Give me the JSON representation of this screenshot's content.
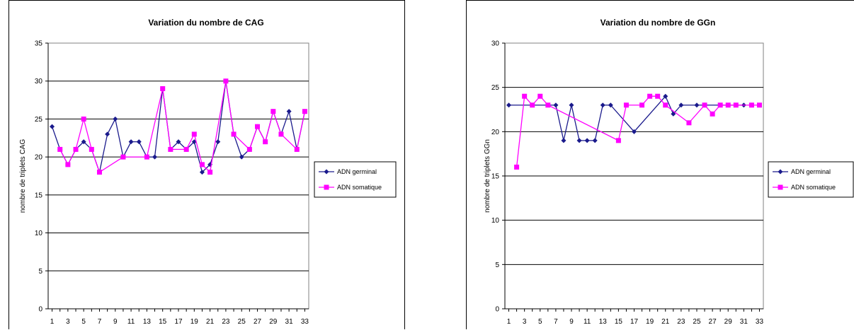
{
  "chart_data": [
    {
      "type": "line",
      "title": "Variation du nombre de CAG",
      "ylabel": "nombre de triplets CAG",
      "xlabel": "",
      "ylim": [
        0,
        35
      ],
      "yticks": [
        0,
        5,
        10,
        15,
        20,
        25,
        30,
        35
      ],
      "x": [
        1,
        2,
        3,
        4,
        5,
        6,
        7,
        8,
        9,
        10,
        11,
        12,
        13,
        14,
        15,
        16,
        17,
        18,
        19,
        20,
        21,
        22,
        23,
        24,
        25,
        26,
        27,
        28,
        29,
        30,
        31,
        32,
        33
      ],
      "xticks": [
        1,
        3,
        5,
        7,
        9,
        11,
        13,
        15,
        17,
        19,
        21,
        23,
        25,
        27,
        29,
        31,
        33
      ],
      "grid": true,
      "legend": "right",
      "series": [
        {
          "name": "ADN germinal",
          "color": "#1a1a8c",
          "marker": "diamond",
          "values": [
            24,
            21,
            19,
            21,
            22,
            21,
            18,
            23,
            25,
            20,
            22,
            22,
            20,
            20,
            29,
            21,
            22,
            21,
            22,
            18,
            19,
            22,
            30,
            23,
            20,
            21,
            24,
            22,
            26,
            23,
            26,
            21,
            26
          ]
        },
        {
          "name": "ADN somatique",
          "color": "#ff00ff",
          "marker": "square",
          "values": [
            null,
            21,
            19,
            21,
            25,
            21,
            18,
            null,
            null,
            20,
            null,
            null,
            20,
            null,
            29,
            21,
            null,
            21,
            23,
            19,
            18,
            null,
            30,
            23,
            null,
            21,
            24,
            22,
            26,
            23,
            null,
            21,
            26
          ]
        }
      ]
    },
    {
      "type": "line",
      "title": "Variation du nombre de GGn",
      "ylabel": "nombre de triplets GGn",
      "xlabel": "",
      "ylim": [
        0,
        30
      ],
      "yticks": [
        0,
        5,
        10,
        15,
        20,
        25,
        30
      ],
      "x": [
        1,
        2,
        3,
        4,
        5,
        6,
        7,
        8,
        9,
        10,
        11,
        12,
        13,
        14,
        15,
        16,
        17,
        18,
        19,
        20,
        21,
        22,
        23,
        24,
        25,
        26,
        27,
        28,
        29,
        30,
        31,
        32,
        33
      ],
      "xticks": [
        1,
        3,
        5,
        7,
        9,
        11,
        13,
        15,
        17,
        19,
        21,
        23,
        25,
        27,
        29,
        31,
        33
      ],
      "grid": true,
      "legend": "right",
      "series": [
        {
          "name": "ADN germinal",
          "color": "#1a1a8c",
          "marker": "diamond",
          "values": [
            23,
            null,
            null,
            null,
            null,
            null,
            23,
            19,
            23,
            19,
            19,
            19,
            23,
            23,
            null,
            null,
            20,
            null,
            null,
            null,
            24,
            22,
            23,
            null,
            23,
            23,
            null,
            null,
            null,
            null,
            23,
            null,
            null
          ]
        },
        {
          "name": "ADN somatique",
          "color": "#ff00ff",
          "marker": "square",
          "values": [
            null,
            16,
            24,
            23,
            24,
            23,
            null,
            null,
            null,
            null,
            null,
            null,
            null,
            null,
            19,
            23,
            null,
            23,
            24,
            24,
            23,
            null,
            null,
            21,
            null,
            23,
            22,
            23,
            23,
            23,
            null,
            23,
            23
          ]
        }
      ]
    }
  ]
}
